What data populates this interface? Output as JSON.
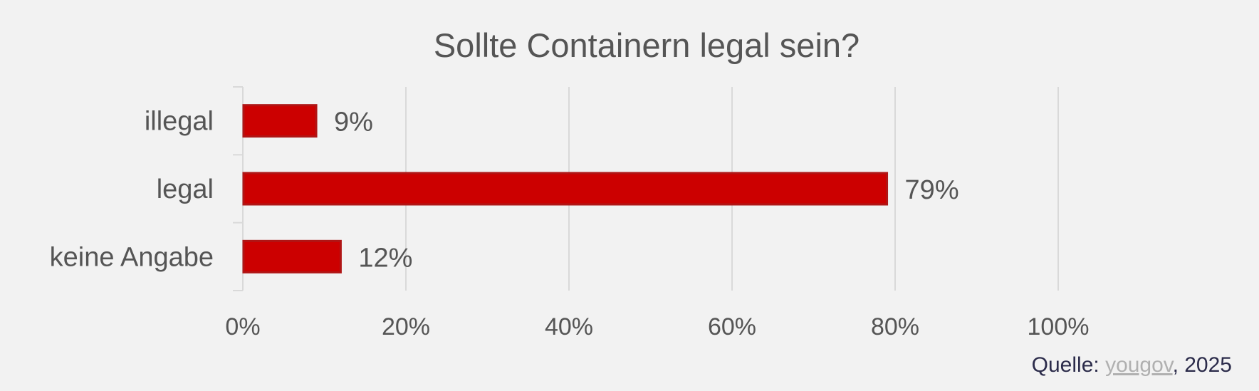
{
  "chart_data": {
    "type": "bar",
    "orientation": "horizontal",
    "title": "Sollte Containern legal sein?",
    "categories": [
      "illegal",
      "legal",
      "keine Angabe"
    ],
    "values": [
      9,
      79,
      12
    ],
    "value_labels": [
      "9%",
      "79%",
      "12%"
    ],
    "xlim": [
      0,
      100
    ],
    "x_ticks": [
      0,
      20,
      40,
      60,
      80,
      100
    ],
    "x_tick_labels": [
      "0%",
      "20%",
      "40%",
      "60%",
      "80%",
      "100%"
    ],
    "grid": true,
    "legend": "none",
    "bar_color": "#cc0000",
    "bar_edge_color": "#b01515"
  },
  "source": {
    "prefix": "Quelle:",
    "link_text": "yougov",
    "suffix": ", 2025"
  },
  "colors": {
    "background": "#f2f2f2",
    "text": "#555555",
    "grid": "#d9d9d9",
    "link": "#b0b0b0"
  }
}
